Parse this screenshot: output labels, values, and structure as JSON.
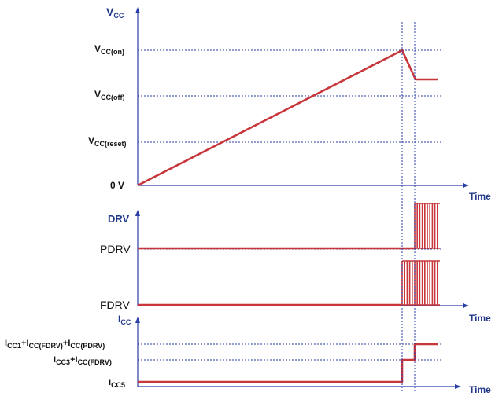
{
  "vcc_panel": {
    "axis_title": "V",
    "axis_title_sub": "CC",
    "levels": [
      {
        "main": "V",
        "sub": "CC(on)"
      },
      {
        "main": "V",
        "sub": "CC(off)"
      },
      {
        "main": "V",
        "sub": "CC(reset)"
      }
    ],
    "zero_label": "0 V",
    "time_label": "Time"
  },
  "drv_panel": {
    "axis_title": "DRV",
    "levels": [
      "PDRV",
      "FDRV"
    ],
    "time_label": "Time"
  },
  "icc_panel": {
    "axis_title": "I",
    "axis_title_sub": "CC",
    "levels": [
      {
        "parts": [
          [
            "I",
            "CC1"
          ],
          [
            "+I",
            "CC(FDRV)"
          ],
          [
            "+I",
            "CC(PDRV)"
          ]
        ]
      },
      {
        "parts": [
          [
            "I",
            "CC3"
          ],
          [
            "+I",
            "CC(FDRV)"
          ]
        ]
      },
      {
        "parts": [
          [
            "I",
            "CC5"
          ]
        ]
      }
    ],
    "time_label": "Time"
  },
  "colors": {
    "axis": "#2b3ea6",
    "signal": "#c8353a",
    "title": "#233a8a"
  }
}
